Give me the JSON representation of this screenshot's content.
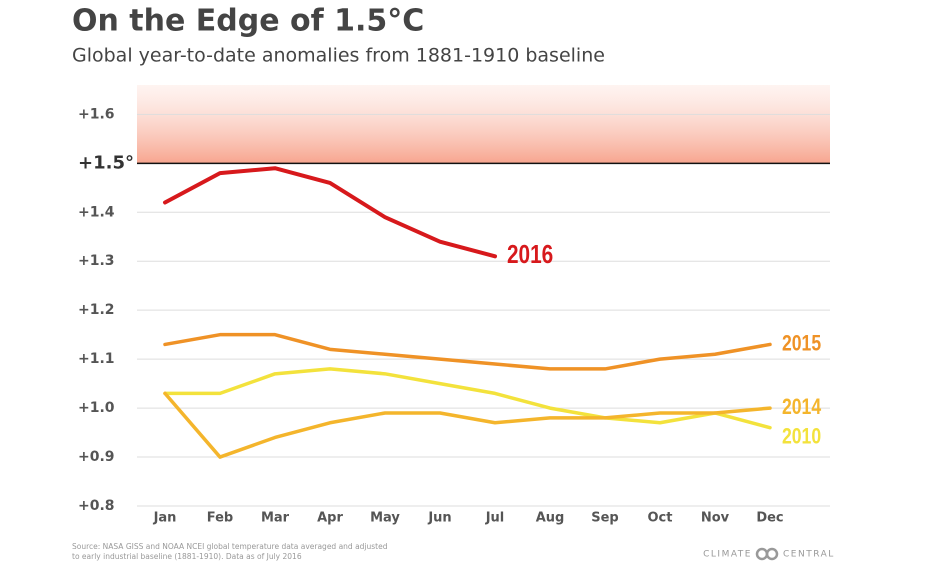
{
  "chart_data": {
    "type": "line",
    "title": "On the Edge of 1.5°C",
    "subtitle": "Global year-to-date anomalies from 1881-1910 baseline",
    "categories": [
      "Jan",
      "Feb",
      "Mar",
      "Apr",
      "May",
      "Jun",
      "Jul",
      "Aug",
      "Sep",
      "Oct",
      "Nov",
      "Dec"
    ],
    "series": [
      {
        "name": "2016",
        "color": "#d7191c",
        "values": [
          1.42,
          1.48,
          1.49,
          1.46,
          1.39,
          1.34,
          1.31,
          null,
          null,
          null,
          null,
          null
        ]
      },
      {
        "name": "2015",
        "color": "#ef9226",
        "values": [
          1.13,
          1.15,
          1.15,
          1.12,
          1.11,
          1.1,
          1.09,
          1.08,
          1.08,
          1.1,
          1.11,
          1.13
        ]
      },
      {
        "name": "2014",
        "color": "#f4b52c",
        "values": [
          1.03,
          0.9,
          0.94,
          0.97,
          0.99,
          0.99,
          0.97,
          0.98,
          0.98,
          0.99,
          0.99,
          1.0
        ]
      },
      {
        "name": "2010",
        "color": "#f3e23c",
        "values": [
          1.03,
          1.03,
          1.07,
          1.08,
          1.07,
          1.05,
          1.03,
          1.0,
          0.98,
          0.97,
          0.99,
          0.96
        ]
      }
    ],
    "ylim": [
      0.8,
      1.66
    ],
    "yticks": [
      {
        "value": 1.6,
        "label": "+1.6"
      },
      {
        "value": 1.5,
        "label": "+1.5°"
      },
      {
        "value": 1.4,
        "label": "+1.4"
      },
      {
        "value": 1.3,
        "label": "+1.3"
      },
      {
        "value": 1.2,
        "label": "+1.2"
      },
      {
        "value": 1.1,
        "label": "+1.1"
      },
      {
        "value": 1.0,
        "label": "+1.0"
      },
      {
        "value": 0.9,
        "label": "+0.9"
      },
      {
        "value": 0.8,
        "label": "+0.8"
      }
    ],
    "threshold": 1.5,
    "grid": true,
    "source": [
      "Source: NASA GISS and NOAA NCEI global temperature data averaged and adjusted",
      "to early industrial baseline (1881-1910). Data as of July 2016"
    ],
    "logo": [
      "CLIMATE",
      "CENTRAL"
    ]
  }
}
